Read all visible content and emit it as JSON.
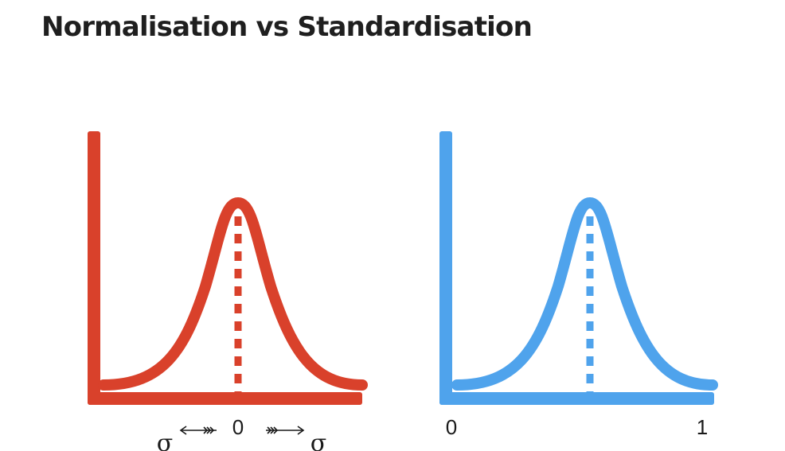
{
  "page": {
    "title": "Normalisation vs Standardisation"
  },
  "diagrams": {
    "standardisation": {
      "color": "#d9412b",
      "center_label": "0",
      "left_label": "σ",
      "right_label": "σ"
    },
    "normalisation": {
      "color": "#4fa3ec",
      "min_label": "0",
      "max_label": "1"
    }
  }
}
